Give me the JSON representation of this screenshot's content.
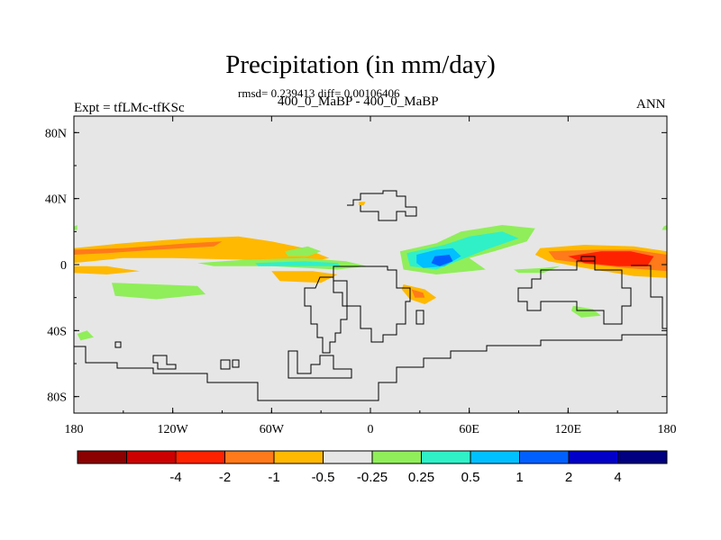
{
  "chart_data": {
    "type": "heatmap",
    "title": "Precipitation (in mm/day)",
    "subtitle": "rmsd= 0.239413 diff= 0.00106406",
    "center_label": "400_0_MaBP - 400_0_MaBP",
    "left_label": "Expt = tfLMc-tfKSc",
    "right_label": "ANN",
    "xlim": [
      -180,
      180
    ],
    "ylim": [
      -90,
      90
    ],
    "x_ticks": [
      {
        "value": -180,
        "label": "180"
      },
      {
        "value": -120,
        "label": "120W"
      },
      {
        "value": -60,
        "label": "60W"
      },
      {
        "value": 0,
        "label": "0"
      },
      {
        "value": 60,
        "label": "60E"
      },
      {
        "value": 120,
        "label": "120E"
      },
      {
        "value": 180,
        "label": "180"
      }
    ],
    "y_ticks": [
      {
        "value": 80,
        "label": "80N"
      },
      {
        "value": 40,
        "label": "40N"
      },
      {
        "value": 0,
        "label": "0"
      },
      {
        "value": -40,
        "label": "40S"
      },
      {
        "value": -80,
        "label": "80S"
      }
    ],
    "colorbar": {
      "colors": [
        "#8b0000",
        "#cc0000",
        "#ff2200",
        "#ff7a1a",
        "#ffb900",
        "#e6e6e6",
        "#90ee5a",
        "#30f0c8",
        "#00c0ff",
        "#0060ff",
        "#0000c8",
        "#000080"
      ],
      "labels": [
        "-4",
        "-2",
        "-1",
        "-0.5",
        "-0.25",
        "0.25",
        "0.5",
        "1",
        "2",
        "4"
      ]
    },
    "anomaly_regions": [
      {
        "color": "#ffb900",
        "points": [
          [
            -180,
            10
          ],
          [
            -150,
            13
          ],
          [
            -110,
            16
          ],
          [
            -80,
            17
          ],
          [
            -60,
            14
          ],
          [
            -40,
            10
          ],
          [
            -25,
            4
          ],
          [
            -40,
            1
          ],
          [
            -80,
            3
          ],
          [
            -120,
            4
          ],
          [
            -150,
            4
          ],
          [
            -180,
            1
          ]
        ]
      },
      {
        "color": "#ff7a1a",
        "points": [
          [
            -180,
            9
          ],
          [
            -150,
            10
          ],
          [
            -110,
            13
          ],
          [
            -90,
            14
          ],
          [
            -95,
            11
          ],
          [
            -130,
            9
          ],
          [
            -160,
            7
          ],
          [
            -180,
            6
          ]
        ]
      },
      {
        "color": "#ffb900",
        "points": [
          [
            -180,
            -1
          ],
          [
            -160,
            -1
          ],
          [
            -140,
            -4
          ],
          [
            -160,
            -6
          ],
          [
            -180,
            -5
          ]
        ]
      },
      {
        "color": "#90ee5a",
        "points": [
          [
            -52,
            8
          ],
          [
            -38,
            11
          ],
          [
            -30,
            8
          ],
          [
            -38,
            5
          ],
          [
            -50,
            5
          ]
        ]
      },
      {
        "color": "#90ee5a",
        "points": [
          [
            -105,
            1
          ],
          [
            -75,
            3
          ],
          [
            -40,
            4
          ],
          [
            -15,
            2
          ],
          [
            -2,
            -1
          ],
          [
            -20,
            -3
          ],
          [
            -60,
            -1
          ],
          [
            -95,
            -1
          ]
        ]
      },
      {
        "color": "#30f0c8",
        "points": [
          [
            -70,
            1
          ],
          [
            -40,
            2
          ],
          [
            -20,
            1
          ],
          [
            -18,
            -1
          ],
          [
            -45,
            -1
          ],
          [
            -68,
            -1
          ]
        ]
      },
      {
        "color": "#ffb900",
        "points": [
          [
            -60,
            -4
          ],
          [
            -35,
            -4
          ],
          [
            -20,
            -6
          ],
          [
            -30,
            -11
          ],
          [
            -55,
            -10
          ]
        ]
      },
      {
        "color": "#90ee5a",
        "points": [
          [
            -157,
            -11
          ],
          [
            -130,
            -12
          ],
          [
            -105,
            -13
          ],
          [
            -100,
            -18
          ],
          [
            -130,
            -21
          ],
          [
            -155,
            -19
          ]
        ]
      },
      {
        "color": "#90ee5a",
        "points": [
          [
            18,
            8
          ],
          [
            40,
            13
          ],
          [
            55,
            20
          ],
          [
            80,
            24
          ],
          [
            100,
            22
          ],
          [
            95,
            14
          ],
          [
            75,
            8
          ],
          [
            60,
            4
          ],
          [
            70,
            -3
          ],
          [
            40,
            -6
          ],
          [
            20,
            -3
          ]
        ]
      },
      {
        "color": "#30f0c8",
        "points": [
          [
            22,
            7
          ],
          [
            45,
            12
          ],
          [
            60,
            17
          ],
          [
            80,
            20
          ],
          [
            90,
            16
          ],
          [
            70,
            9
          ],
          [
            55,
            3
          ],
          [
            40,
            -3
          ],
          [
            24,
            -1
          ]
        ]
      },
      {
        "color": "#00c0ff",
        "points": [
          [
            28,
            6
          ],
          [
            40,
            9
          ],
          [
            50,
            10
          ],
          [
            55,
            5
          ],
          [
            45,
            -1
          ],
          [
            32,
            -2
          ],
          [
            28,
            1
          ]
        ]
      },
      {
        "color": "#0060ff",
        "points": [
          [
            39,
            5
          ],
          [
            48,
            6
          ],
          [
            50,
            2
          ],
          [
            42,
            -1
          ],
          [
            37,
            1
          ]
        ]
      },
      {
        "color": "#90ee5a",
        "points": [
          [
            87,
            -3
          ],
          [
            105,
            -2
          ],
          [
            115,
            -1
          ],
          [
            105,
            -5
          ],
          [
            90,
            -5
          ]
        ]
      },
      {
        "color": "#ffb900",
        "points": [
          [
            103,
            10
          ],
          [
            130,
            12
          ],
          [
            160,
            11
          ],
          [
            180,
            8
          ],
          [
            180,
            -8
          ],
          [
            160,
            -7
          ],
          [
            130,
            -2
          ],
          [
            108,
            2
          ],
          [
            100,
            6
          ]
        ]
      },
      {
        "color": "#ff7a1a",
        "points": [
          [
            108,
            8
          ],
          [
            135,
            9
          ],
          [
            160,
            9
          ],
          [
            180,
            6
          ],
          [
            180,
            -4
          ],
          [
            155,
            -2
          ],
          [
            135,
            0
          ],
          [
            112,
            3
          ]
        ]
      },
      {
        "color": "#ff2200",
        "points": [
          [
            120,
            5
          ],
          [
            140,
            8
          ],
          [
            158,
            8
          ],
          [
            172,
            5
          ],
          [
            168,
            -1
          ],
          [
            150,
            -1
          ],
          [
            130,
            1
          ]
        ]
      },
      {
        "color": "#ffb900",
        "points": [
          [
            20,
            -12
          ],
          [
            33,
            -15
          ],
          [
            40,
            -20
          ],
          [
            33,
            -24
          ],
          [
            24,
            -21
          ],
          [
            19,
            -15
          ]
        ]
      },
      {
        "color": "#ff7a1a",
        "points": [
          [
            25,
            -15
          ],
          [
            32,
            -17
          ],
          [
            33,
            -20
          ],
          [
            27,
            -20
          ]
        ]
      },
      {
        "color": "#90ee5a",
        "points": [
          [
            123,
            -25
          ],
          [
            135,
            -27
          ],
          [
            140,
            -31
          ],
          [
            128,
            -32
          ],
          [
            122,
            -28
          ]
        ]
      },
      {
        "color": "#90ee5a",
        "points": [
          [
            -178,
            -42
          ],
          [
            -172,
            -40
          ],
          [
            -168,
            -44
          ],
          [
            -176,
            -46
          ]
        ]
      },
      {
        "color": "#ffb900",
        "points": [
          [
            -7,
            38
          ],
          [
            -3,
            38
          ],
          [
            -4,
            36
          ],
          [
            -7,
            36
          ]
        ]
      },
      {
        "color": "#90ee5a",
        "points": [
          [
            -180,
            23
          ],
          [
            -178,
            24
          ],
          [
            -178,
            21
          ],
          [
            -180,
            21
          ]
        ]
      },
      {
        "color": "#90ee5a",
        "points": [
          [
            178,
            23
          ],
          [
            180,
            24
          ],
          [
            180,
            21
          ],
          [
            177,
            21
          ]
        ]
      }
    ]
  }
}
